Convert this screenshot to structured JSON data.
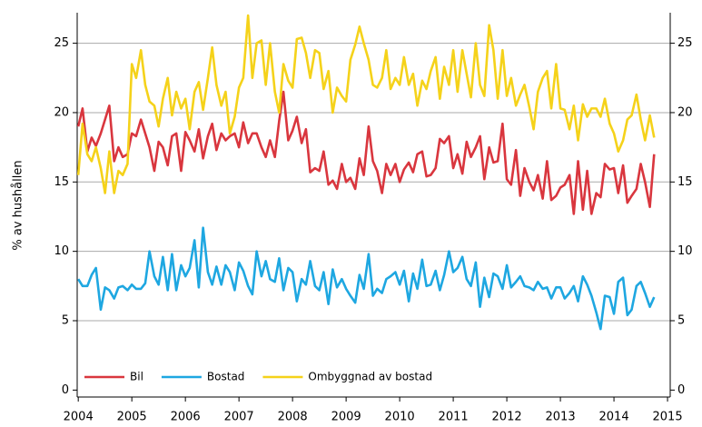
{
  "chart_data": {
    "type": "line",
    "y_label": "% av hushållen",
    "x": [
      2004.0,
      2004.08,
      2004.17,
      2004.25,
      2004.33,
      2004.42,
      2004.5,
      2004.58,
      2004.67,
      2004.75,
      2004.83,
      2004.92,
      2005.0,
      2005.08,
      2005.17,
      2005.25,
      2005.33,
      2005.42,
      2005.5,
      2005.58,
      2005.67,
      2005.75,
      2005.83,
      2005.92,
      2006.0,
      2006.08,
      2006.17,
      2006.25,
      2006.33,
      2006.42,
      2006.5,
      2006.58,
      2006.67,
      2006.75,
      2006.83,
      2006.92,
      2007.0,
      2007.08,
      2007.17,
      2007.25,
      2007.33,
      2007.42,
      2007.5,
      2007.58,
      2007.67,
      2007.75,
      2007.83,
      2007.92,
      2008.0,
      2008.08,
      2008.17,
      2008.25,
      2008.33,
      2008.42,
      2008.5,
      2008.58,
      2008.67,
      2008.75,
      2008.83,
      2008.92,
      2009.0,
      2009.08,
      2009.17,
      2009.25,
      2009.33,
      2009.42,
      2009.5,
      2009.58,
      2009.67,
      2009.75,
      2009.83,
      2009.92,
      2010.0,
      2010.08,
      2010.17,
      2010.25,
      2010.33,
      2010.42,
      2010.5,
      2010.58,
      2010.67,
      2010.75,
      2010.83,
      2010.92,
      2011.0,
      2011.08,
      2011.17,
      2011.25,
      2011.33,
      2011.42,
      2011.5,
      2011.58,
      2011.67,
      2011.75,
      2011.83,
      2011.92,
      2012.0,
      2012.08,
      2012.17,
      2012.25,
      2012.33,
      2012.42,
      2012.5,
      2012.58,
      2012.67,
      2012.75,
      2012.83,
      2012.92,
      2013.0,
      2013.08,
      2013.17,
      2013.25,
      2013.33,
      2013.42,
      2013.5,
      2013.58,
      2013.67,
      2013.75,
      2013.83,
      2013.92,
      2014.0,
      2014.08,
      2014.17,
      2014.25,
      2014.33,
      2014.42,
      2014.5,
      2014.58,
      2014.67,
      2014.75
    ],
    "series": [
      {
        "name": "Bil",
        "color": "#d9363e",
        "values": [
          19.0,
          20.3,
          17.2,
          18.2,
          17.6,
          18.5,
          19.5,
          20.5,
          16.5,
          17.5,
          16.8,
          17.0,
          18.5,
          18.3,
          19.5,
          18.5,
          17.5,
          15.8,
          17.9,
          17.5,
          16.2,
          18.3,
          18.5,
          15.8,
          18.6,
          18.0,
          17.2,
          18.8,
          16.7,
          18.3,
          19.2,
          17.3,
          18.5,
          18.0,
          18.3,
          18.5,
          17.5,
          19.3,
          17.8,
          18.5,
          18.5,
          17.5,
          16.8,
          18.0,
          16.8,
          19.4,
          21.5,
          18.0,
          18.7,
          19.7,
          17.8,
          18.8,
          15.7,
          16.0,
          15.8,
          17.2,
          14.8,
          15.1,
          14.5,
          16.3,
          15.0,
          15.3,
          14.5,
          16.7,
          15.5,
          19.0,
          16.5,
          15.8,
          14.2,
          16.3,
          15.5,
          16.3,
          15.0,
          15.9,
          16.4,
          15.7,
          17.0,
          17.2,
          15.4,
          15.5,
          16.0,
          18.1,
          17.8,
          18.3,
          16.0,
          17.0,
          15.6,
          17.9,
          16.8,
          17.5,
          18.3,
          15.2,
          17.5,
          16.4,
          16.5,
          19.2,
          15.2,
          14.8,
          17.3,
          14.0,
          16.0,
          15.0,
          14.4,
          15.5,
          13.8,
          16.5,
          13.7,
          14.0,
          14.6,
          14.8,
          15.5,
          12.7,
          16.5,
          13.0,
          15.8,
          12.7,
          14.2,
          13.9,
          16.3,
          15.9,
          16.0,
          14.2,
          16.2,
          13.5,
          14.0,
          14.5,
          16.3,
          15.0,
          13.2,
          17.0
        ]
      },
      {
        "name": "Bostad",
        "color": "#1ea7e1",
        "values": [
          8.0,
          7.5,
          7.5,
          8.3,
          8.8,
          5.8,
          7.4,
          7.2,
          6.6,
          7.4,
          7.5,
          7.2,
          7.6,
          7.3,
          7.3,
          7.7,
          10.0,
          8.2,
          7.6,
          9.6,
          7.2,
          9.8,
          7.2,
          9.0,
          8.2,
          8.8,
          10.8,
          7.4,
          11.7,
          8.5,
          7.6,
          8.9,
          7.6,
          9.0,
          8.5,
          7.2,
          9.2,
          8.6,
          7.5,
          6.9,
          10.0,
          8.2,
          9.3,
          8.0,
          7.8,
          9.5,
          7.2,
          8.8,
          8.5,
          6.4,
          8.0,
          7.6,
          9.3,
          7.5,
          7.2,
          8.5,
          6.2,
          8.7,
          7.4,
          8.0,
          7.3,
          6.8,
          6.3,
          8.3,
          7.3,
          9.8,
          6.8,
          7.3,
          7.0,
          8.0,
          8.2,
          8.5,
          7.6,
          8.6,
          6.4,
          8.4,
          7.3,
          9.4,
          7.5,
          7.6,
          8.6,
          7.2,
          8.3,
          10.0,
          8.5,
          8.8,
          9.6,
          8.0,
          7.5,
          9.2,
          6.0,
          8.1,
          6.7,
          8.4,
          8.2,
          7.3,
          9.0,
          7.4,
          7.8,
          8.2,
          7.5,
          7.4,
          7.2,
          7.8,
          7.3,
          7.4,
          6.6,
          7.4,
          7.4,
          6.6,
          7.0,
          7.5,
          6.4,
          8.2,
          7.6,
          6.8,
          5.6,
          4.4,
          6.8,
          6.7,
          5.5,
          7.8,
          8.1,
          5.4,
          5.8,
          7.5,
          7.8,
          7.0,
          6.0,
          6.7
        ]
      },
      {
        "name": "Ombyggnad av bostad",
        "color": "#f5d21a",
        "values": [
          15.5,
          19.2,
          17.0,
          16.5,
          17.5,
          16.0,
          14.2,
          17.2,
          14.2,
          15.8,
          15.5,
          16.3,
          23.5,
          22.5,
          24.5,
          22.0,
          20.8,
          20.5,
          19.0,
          21.0,
          22.5,
          19.8,
          21.5,
          20.3,
          21.0,
          18.8,
          21.5,
          22.2,
          20.2,
          22.5,
          24.7,
          22.0,
          20.5,
          21.5,
          18.5,
          19.7,
          21.8,
          22.5,
          27.0,
          22.5,
          25.0,
          25.2,
          22.0,
          25.0,
          21.5,
          20.0,
          23.5,
          22.3,
          21.8,
          25.3,
          25.4,
          24.3,
          22.5,
          24.5,
          24.3,
          21.7,
          23.0,
          20.0,
          21.8,
          21.2,
          20.8,
          23.8,
          24.9,
          26.2,
          25.0,
          23.8,
          22.0,
          21.8,
          22.5,
          24.5,
          21.7,
          22.5,
          22.0,
          24.0,
          22.0,
          22.8,
          20.5,
          22.3,
          21.7,
          23.0,
          24.0,
          21.0,
          23.3,
          22.0,
          24.5,
          21.5,
          24.5,
          22.8,
          21.1,
          25.0,
          22.0,
          21.2,
          26.3,
          24.5,
          21.0,
          24.5,
          21.2,
          22.5,
          20.5,
          21.3,
          22.0,
          20.4,
          18.8,
          21.5,
          22.5,
          23.0,
          20.3,
          23.5,
          20.3,
          20.2,
          18.8,
          20.5,
          18.0,
          20.6,
          19.7,
          20.3,
          20.3,
          19.7,
          21.0,
          19.2,
          18.5,
          17.2,
          18.0,
          19.5,
          19.8,
          21.3,
          19.5,
          18.0,
          19.8,
          18.2
        ]
      }
    ],
    "xlim": [
      2003.98,
      2015.05
    ],
    "xticks": [
      2004,
      2005,
      2006,
      2007,
      2008,
      2009,
      2010,
      2011,
      2012,
      2013,
      2014,
      2015
    ],
    "ylim": [
      -0.5,
      27.2
    ],
    "yticks": [
      0,
      5,
      10,
      15,
      20,
      25
    ],
    "y2lim": [
      -0.5,
      27.2
    ],
    "y2ticks": [
      0,
      5,
      10,
      15,
      20,
      25
    ],
    "grid": true,
    "legend": "lower left"
  }
}
